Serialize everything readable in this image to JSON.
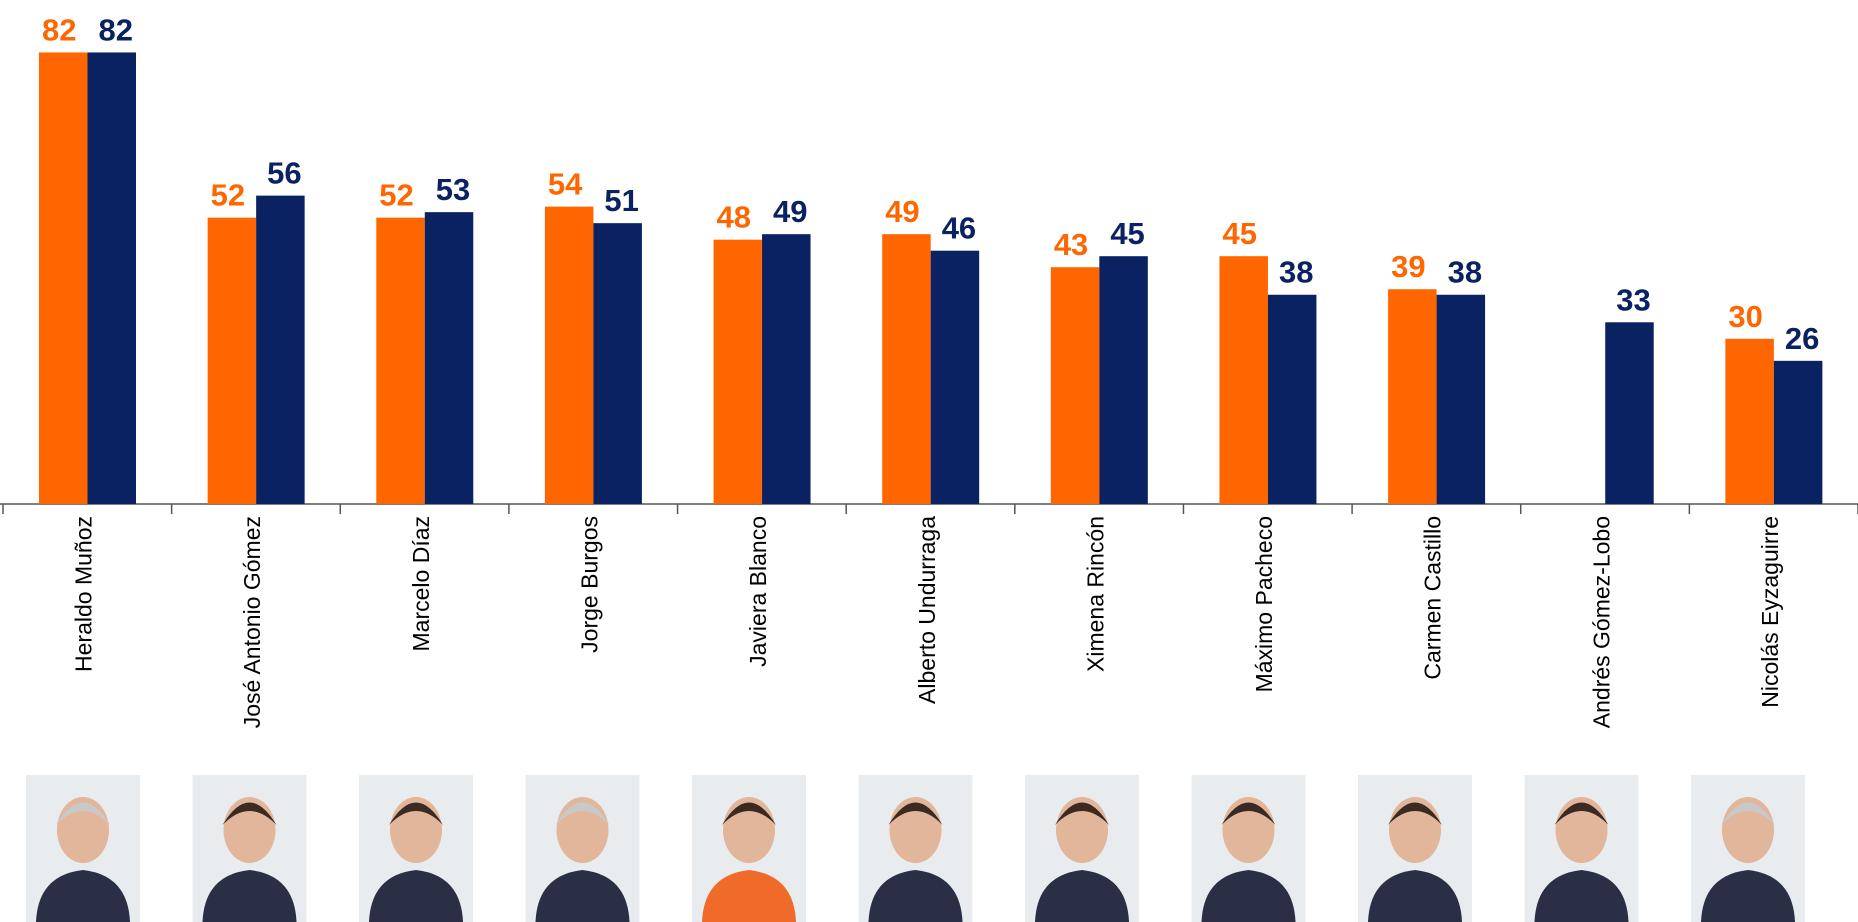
{
  "chart_data": {
    "type": "bar",
    "categories": [
      "Heraldo Muñoz",
      "José Antonio Gómez",
      "Marcelo Díaz",
      "Jorge Burgos",
      "Javiera Blanco",
      "Alberto Undurraga",
      "Ximena Rincón",
      "Máximo Pacheco",
      "Carmen Castillo",
      "Andrés Gómez-Lobo",
      "Nicolás Eyzaguirre"
    ],
    "series": [
      {
        "color": "#ff6600",
        "values": [
          82,
          52,
          52,
          54,
          48,
          49,
          43,
          45,
          39,
          null,
          30
        ]
      },
      {
        "color": "#0b2262",
        "values": [
          82,
          56,
          53,
          51,
          49,
          46,
          45,
          38,
          38,
          33,
          26
        ]
      }
    ],
    "ylim": [
      0,
      90
    ]
  }
}
